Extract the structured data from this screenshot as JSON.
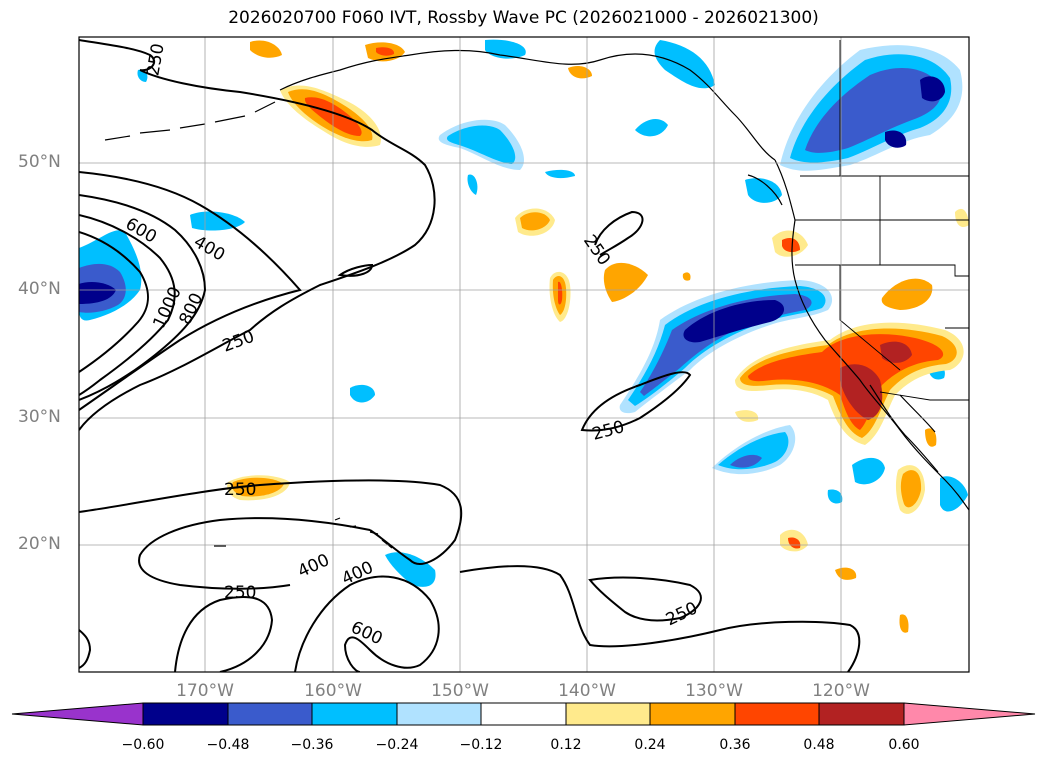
{
  "title": "2026020700 F060 IVT, Rossby Wave PC (2026021000 - 2026021300)",
  "axes": {
    "lat_labels": [
      "50°N",
      "40°N",
      "30°N",
      "20°N"
    ],
    "lon_labels": [
      "170°W",
      "160°W",
      "150°W",
      "140°W",
      "130°W",
      "120°W"
    ]
  },
  "ivt_contour_labels": [
    "250",
    "600",
    "400",
    "1000",
    "800",
    "250",
    "250",
    "250",
    "250",
    "400",
    "400",
    "250",
    "600",
    "250"
  ],
  "colorbar": {
    "tick_labels": [
      "−0.60",
      "−0.48",
      "−0.36",
      "−0.24",
      "−0.12",
      "0.12",
      "0.24",
      "0.36",
      "0.48",
      "0.60"
    ],
    "colors": [
      "#9933cc",
      "#00008b",
      "#3a5bcc",
      "#00bfff",
      "#b0e2ff",
      "#ffffff",
      "#ffea8c",
      "#ffa500",
      "#ff4500",
      "#b22222",
      "#ff88aa"
    ]
  },
  "map_colors": {
    "dark_blue": "#00008b",
    "mid_blue": "#3a5bcc",
    "cyan": "#00bfff",
    "light_blue": "#b0e2ff",
    "yellow": "#ffea8c",
    "orange": "#ffa500",
    "red_orange": "#ff4500",
    "dark_red": "#b22222"
  }
}
